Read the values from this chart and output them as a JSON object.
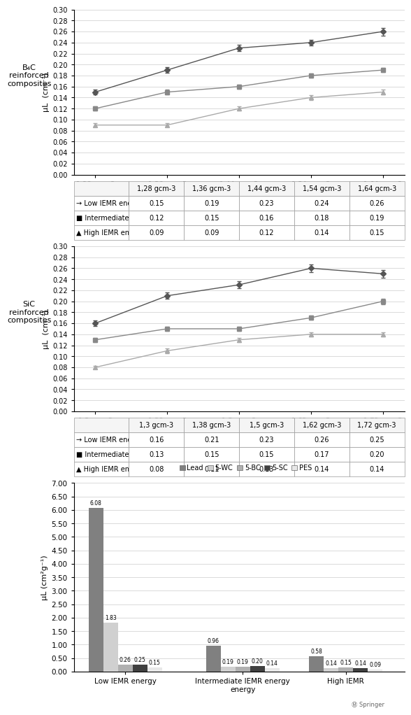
{
  "plot1": {
    "title": "B₄C\nreinforced\ncomposites",
    "xlabel_vals": [
      "1,28 gcm-3",
      "1,36 gcm-3",
      "1,44 gcm-3",
      "1,54 gcm-3",
      "1,64 gcm-3"
    ],
    "ylabel": "μL  (cm⁻¹)",
    "series": [
      {
        "label": "→ Low IEMR energy",
        "values": [
          0.15,
          0.19,
          0.23,
          0.24,
          0.26
        ],
        "marker": "D",
        "color": "#555555",
        "err": [
          0.005,
          0.005,
          0.006,
          0.005,
          0.007
        ]
      },
      {
        "label": "■ Intermediate IEMR energy",
        "values": [
          0.12,
          0.15,
          0.16,
          0.18,
          0.19
        ],
        "marker": "s",
        "color": "#888888",
        "err": [
          0.004,
          0.004,
          0.004,
          0.004,
          0.004
        ]
      },
      {
        "label": "▲ High IEMR energy",
        "values": [
          0.09,
          0.09,
          0.12,
          0.14,
          0.15
        ],
        "marker": "^",
        "color": "#aaaaaa",
        "err": [
          0.003,
          0.003,
          0.004,
          0.004,
          0.004
        ]
      }
    ],
    "table_rows": [
      [
        "→ Low IEMR energy",
        "0.15",
        "0.19",
        "0.23",
        "0.24",
        "0.26"
      ],
      [
        "■ Intermediate IEMR energy",
        "0.12",
        "0.15",
        "0.16",
        "0.18",
        "0.19"
      ],
      [
        "▲ High IEMR energy",
        "0.09",
        "0.09",
        "0.12",
        "0.14",
        "0.15"
      ]
    ],
    "ylim": [
      0.0,
      0.3
    ],
    "yticks": [
      0.0,
      0.02,
      0.04,
      0.06,
      0.08,
      0.1,
      0.12,
      0.14,
      0.16,
      0.18,
      0.2,
      0.22,
      0.24,
      0.26,
      0.28,
      0.3
    ]
  },
  "plot2": {
    "title": "SiC\nreinforced\ncomposites",
    "xlabel_vals": [
      "1,3 gcm-3",
      "1,38 gcm-3",
      "1,5 gcm-3",
      "1,62 gcm-3",
      "1,72 gcm-3"
    ],
    "ylabel": "μL  (cm⁻¹)",
    "series": [
      {
        "label": "→ Low IEMR energy",
        "values": [
          0.16,
          0.21,
          0.23,
          0.26,
          0.25
        ],
        "marker": "D",
        "color": "#555555",
        "err": [
          0.005,
          0.006,
          0.006,
          0.007,
          0.007
        ]
      },
      {
        "label": "■ Intermediate IEMR energy",
        "values": [
          0.13,
          0.15,
          0.15,
          0.17,
          0.2
        ],
        "marker": "s",
        "color": "#888888",
        "err": [
          0.004,
          0.004,
          0.004,
          0.004,
          0.005
        ]
      },
      {
        "label": "▲ High IEMR energy",
        "values": [
          0.08,
          0.11,
          0.13,
          0.14,
          0.14
        ],
        "marker": "^",
        "color": "#aaaaaa",
        "err": [
          0.003,
          0.004,
          0.004,
          0.004,
          0.004
        ]
      }
    ],
    "table_rows": [
      [
        "→ Low IEMR energy",
        "0.16",
        "0.21",
        "0.23",
        "0.26",
        "0.25"
      ],
      [
        "■ Intermediate IEMR energy",
        "0.13",
        "0.15",
        "0.15",
        "0.17",
        "0.20"
      ],
      [
        "▲ High IEMR energy",
        "0.08",
        "0.11",
        "0.13",
        "0.14",
        "0.14"
      ]
    ],
    "ylim": [
      0.0,
      0.3
    ],
    "yticks": [
      0.0,
      0.02,
      0.04,
      0.06,
      0.08,
      0.1,
      0.12,
      0.14,
      0.16,
      0.18,
      0.2,
      0.22,
      0.24,
      0.26,
      0.28,
      0.3
    ]
  },
  "plot3": {
    "ylabel": "μL (cm²g⁻¹)",
    "categories": [
      "Low IEMR energy",
      "Intermediate IEMR energy\nenergy",
      "High IEMR"
    ],
    "series_labels": [
      "Lead",
      "5-WC",
      "5-BC",
      "5-SC",
      "PES"
    ],
    "series_colors": [
      "#808080",
      "#d0d0d0",
      "#b0b0b0",
      "#404040",
      "#e8e8e8"
    ],
    "values": [
      [
        6.08,
        0.96,
        0.58
      ],
      [
        1.83,
        0.19,
        0.14
      ],
      [
        0.26,
        0.19,
        0.15
      ],
      [
        0.25,
        0.2,
        0.14
      ],
      [
        0.15,
        0.14,
        0.09
      ]
    ],
    "ylim": [
      0,
      7.0
    ],
    "yticks": [
      0.0,
      0.5,
      1.0,
      1.5,
      2.0,
      2.5,
      3.0,
      3.5,
      4.0,
      4.5,
      5.0,
      5.5,
      6.0,
      6.5,
      7.0
    ],
    "bar_labels": [
      [
        "6.08",
        "0.96",
        "0.58"
      ],
      [
        "1.83",
        "0.19",
        "0.14"
      ],
      [
        "0.26",
        "0.19",
        "0.15"
      ],
      [
        "0.25",
        "0.20",
        "0.14"
      ],
      [
        "0.15",
        "0.14",
        "0.09"
      ]
    ]
  },
  "springer_text": "Springer"
}
